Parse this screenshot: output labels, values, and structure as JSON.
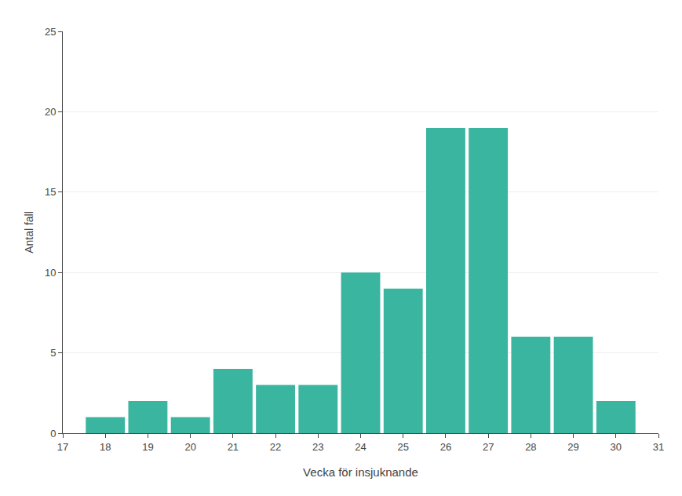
{
  "chart_data": {
    "type": "bar",
    "x": [
      18,
      19,
      20,
      21,
      22,
      23,
      24,
      25,
      26,
      27,
      28,
      29,
      30
    ],
    "values": [
      1,
      2,
      1,
      4,
      3,
      3,
      10,
      9,
      19,
      19,
      6,
      6,
      2
    ],
    "color": "#3ab5a0",
    "xlabel": "Vecka för insjuknande",
    "ylabel": "Antal fall",
    "xlim": [
      17,
      31
    ],
    "ylim": [
      0,
      25
    ],
    "xticks": [
      17,
      18,
      19,
      20,
      21,
      22,
      23,
      24,
      25,
      26,
      27,
      28,
      29,
      30,
      31
    ],
    "yticks": [
      0,
      5,
      10,
      15,
      20,
      25
    ],
    "grid": true
  }
}
